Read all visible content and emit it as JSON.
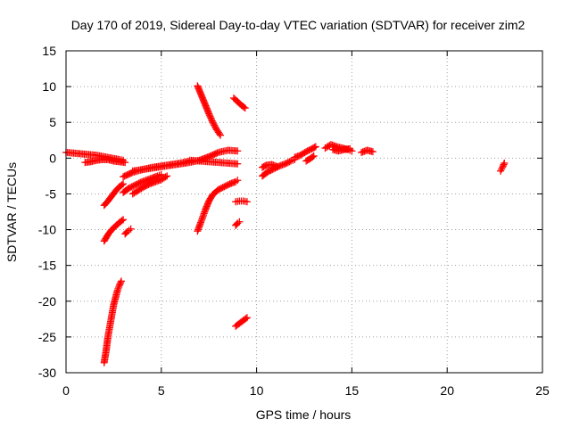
{
  "chart_data": {
    "type": "scatter",
    "title": "Day 170 of 2019, Sidereal Day-to-day VTEC variation (SDTVAR) for receiver zim2",
    "xlabel": "GPS time / hours",
    "ylabel": "SDTVAR / TECUs",
    "xlim": [
      0,
      25
    ],
    "ylim": [
      -30,
      15
    ],
    "xticks": [
      0,
      5,
      10,
      15,
      20,
      25
    ],
    "yticks": [
      -30,
      -25,
      -20,
      -15,
      -10,
      -5,
      0,
      5,
      10,
      15
    ],
    "grid": true,
    "marker": "+",
    "color": "#ff0000",
    "segments": [
      {
        "x": [
          0.0,
          0.4,
          0.8,
          1.2,
          1.6,
          2.0,
          2.4,
          2.8,
          3.0
        ],
        "y": [
          0.8,
          0.7,
          0.6,
          0.5,
          0.4,
          0.2,
          0.0,
          -0.2,
          -0.3
        ]
      },
      {
        "x": [
          1.0,
          1.3,
          1.6,
          1.9,
          2.2,
          2.5,
          2.8,
          3.1
        ],
        "y": [
          -0.6,
          -0.5,
          -0.3,
          -0.2,
          -0.2,
          -0.4,
          -0.5,
          -0.6
        ]
      },
      {
        "x": [
          3.0,
          3.5,
          4.0,
          4.5,
          5.0,
          5.5,
          6.0,
          6.5
        ],
        "y": [
          -2.6,
          -2.0,
          -1.6,
          -1.3,
          -1.1,
          -0.9,
          -0.7,
          -0.4
        ]
      },
      {
        "x": [
          3.5,
          4.0,
          4.5,
          5.0,
          5.5,
          6.0,
          6.5,
          7.0,
          7.5,
          8.0,
          8.5,
          9.0
        ],
        "y": [
          -1.8,
          -1.6,
          -1.4,
          -1.2,
          -1.0,
          -0.8,
          -0.6,
          -0.3,
          0.2,
          0.8,
          1.1,
          1.0
        ]
      },
      {
        "x": [
          6.5,
          7.0,
          7.5,
          8.0,
          8.5,
          9.0
        ],
        "y": [
          -0.3,
          -0.4,
          -0.5,
          -0.6,
          -0.7,
          -0.8
        ]
      },
      {
        "x": [
          2.0,
          2.2,
          2.4,
          2.6,
          2.8,
          3.0
        ],
        "y": [
          -6.6,
          -6.0,
          -5.3,
          -4.6,
          -4.0,
          -3.6
        ]
      },
      {
        "x": [
          3.0,
          3.3,
          3.6,
          3.9,
          4.2,
          4.5,
          4.8,
          5.0
        ],
        "y": [
          -4.8,
          -4.2,
          -3.8,
          -3.4,
          -3.1,
          -2.8,
          -2.5,
          -2.3
        ]
      },
      {
        "x": [
          3.5,
          3.8,
          4.1,
          4.4,
          4.7,
          5.0,
          5.3
        ],
        "y": [
          -5.0,
          -4.5,
          -4.0,
          -3.6,
          -3.3,
          -3.0,
          -2.5
        ]
      },
      {
        "x": [
          2.0,
          2.2,
          2.4,
          2.6,
          2.8,
          3.0
        ],
        "y": [
          -11.6,
          -10.7,
          -10.0,
          -9.5,
          -9.0,
          -8.6
        ]
      },
      {
        "x": [
          3.1,
          3.2,
          3.3,
          3.4
        ],
        "y": [
          -10.6,
          -10.3,
          -10.1,
          -9.9
        ]
      },
      {
        "x": [
          2.0,
          2.1,
          2.2,
          2.3,
          2.4,
          2.5,
          2.6,
          2.7,
          2.8,
          2.9
        ],
        "y": [
          -28.6,
          -27.0,
          -25.0,
          -23.5,
          -22.0,
          -20.5,
          -19.5,
          -18.5,
          -17.8,
          -17.2
        ]
      },
      {
        "x": [
          6.9,
          7.1,
          7.3,
          7.5,
          7.7,
          7.9,
          8.1
        ],
        "y": [
          10.1,
          8.8,
          7.5,
          6.2,
          5.0,
          4.0,
          3.2
        ]
      },
      {
        "x": [
          6.9,
          7.1,
          7.3,
          7.5,
          7.7,
          8.0,
          8.3,
          8.6,
          8.9,
          9.0
        ],
        "y": [
          -10.2,
          -8.8,
          -7.3,
          -6.0,
          -5.1,
          -4.4,
          -4.0,
          -3.6,
          -3.3,
          -3.1
        ]
      },
      {
        "x": [
          8.8,
          9.0,
          9.2,
          9.4
        ],
        "y": [
          8.4,
          7.9,
          7.4,
          7.0
        ]
      },
      {
        "x": [
          8.9,
          9.1,
          9.3,
          9.5
        ],
        "y": [
          -6.1,
          -6.0,
          -6.0,
          -6.1
        ]
      },
      {
        "x": [
          8.9,
          9.0,
          9.1
        ],
        "y": [
          -9.4,
          -9.1,
          -8.9
        ]
      },
      {
        "x": [
          8.9,
          9.1,
          9.3,
          9.5
        ],
        "y": [
          -23.5,
          -23.1,
          -22.7,
          -22.3
        ]
      },
      {
        "x": [
          10.3,
          10.6,
          10.9,
          11.2,
          11.5,
          11.8,
          12.0
        ],
        "y": [
          -2.5,
          -1.9,
          -1.5,
          -1.1,
          -0.8,
          -0.4,
          -0.2
        ]
      },
      {
        "x": [
          10.3,
          10.5,
          10.8,
          11.1
        ],
        "y": [
          -1.3,
          -1.0,
          -0.9,
          -1.2
        ]
      },
      {
        "x": [
          12.0,
          12.3,
          12.6,
          12.9,
          13.1
        ],
        "y": [
          0.1,
          0.4,
          0.9,
          1.3,
          1.6
        ]
      },
      {
        "x": [
          12.6,
          12.8,
          13.0
        ],
        "y": [
          -0.4,
          -0.1,
          0.3
        ]
      },
      {
        "x": [
          13.6,
          13.9,
          14.2,
          14.5,
          14.8,
          15.0
        ],
        "y": [
          1.4,
          1.9,
          1.6,
          1.4,
          1.2,
          1.0
        ]
      },
      {
        "x": [
          14.0,
          14.3,
          14.6,
          14.9
        ],
        "y": [
          1.2,
          1.0,
          1.2,
          1.3
        ]
      },
      {
        "x": [
          15.5,
          15.8,
          16.1
        ],
        "y": [
          0.8,
          1.1,
          0.9
        ]
      },
      {
        "x": [
          22.8,
          22.9,
          23.0
        ],
        "y": [
          -1.8,
          -1.3,
          -0.7
        ]
      }
    ]
  }
}
